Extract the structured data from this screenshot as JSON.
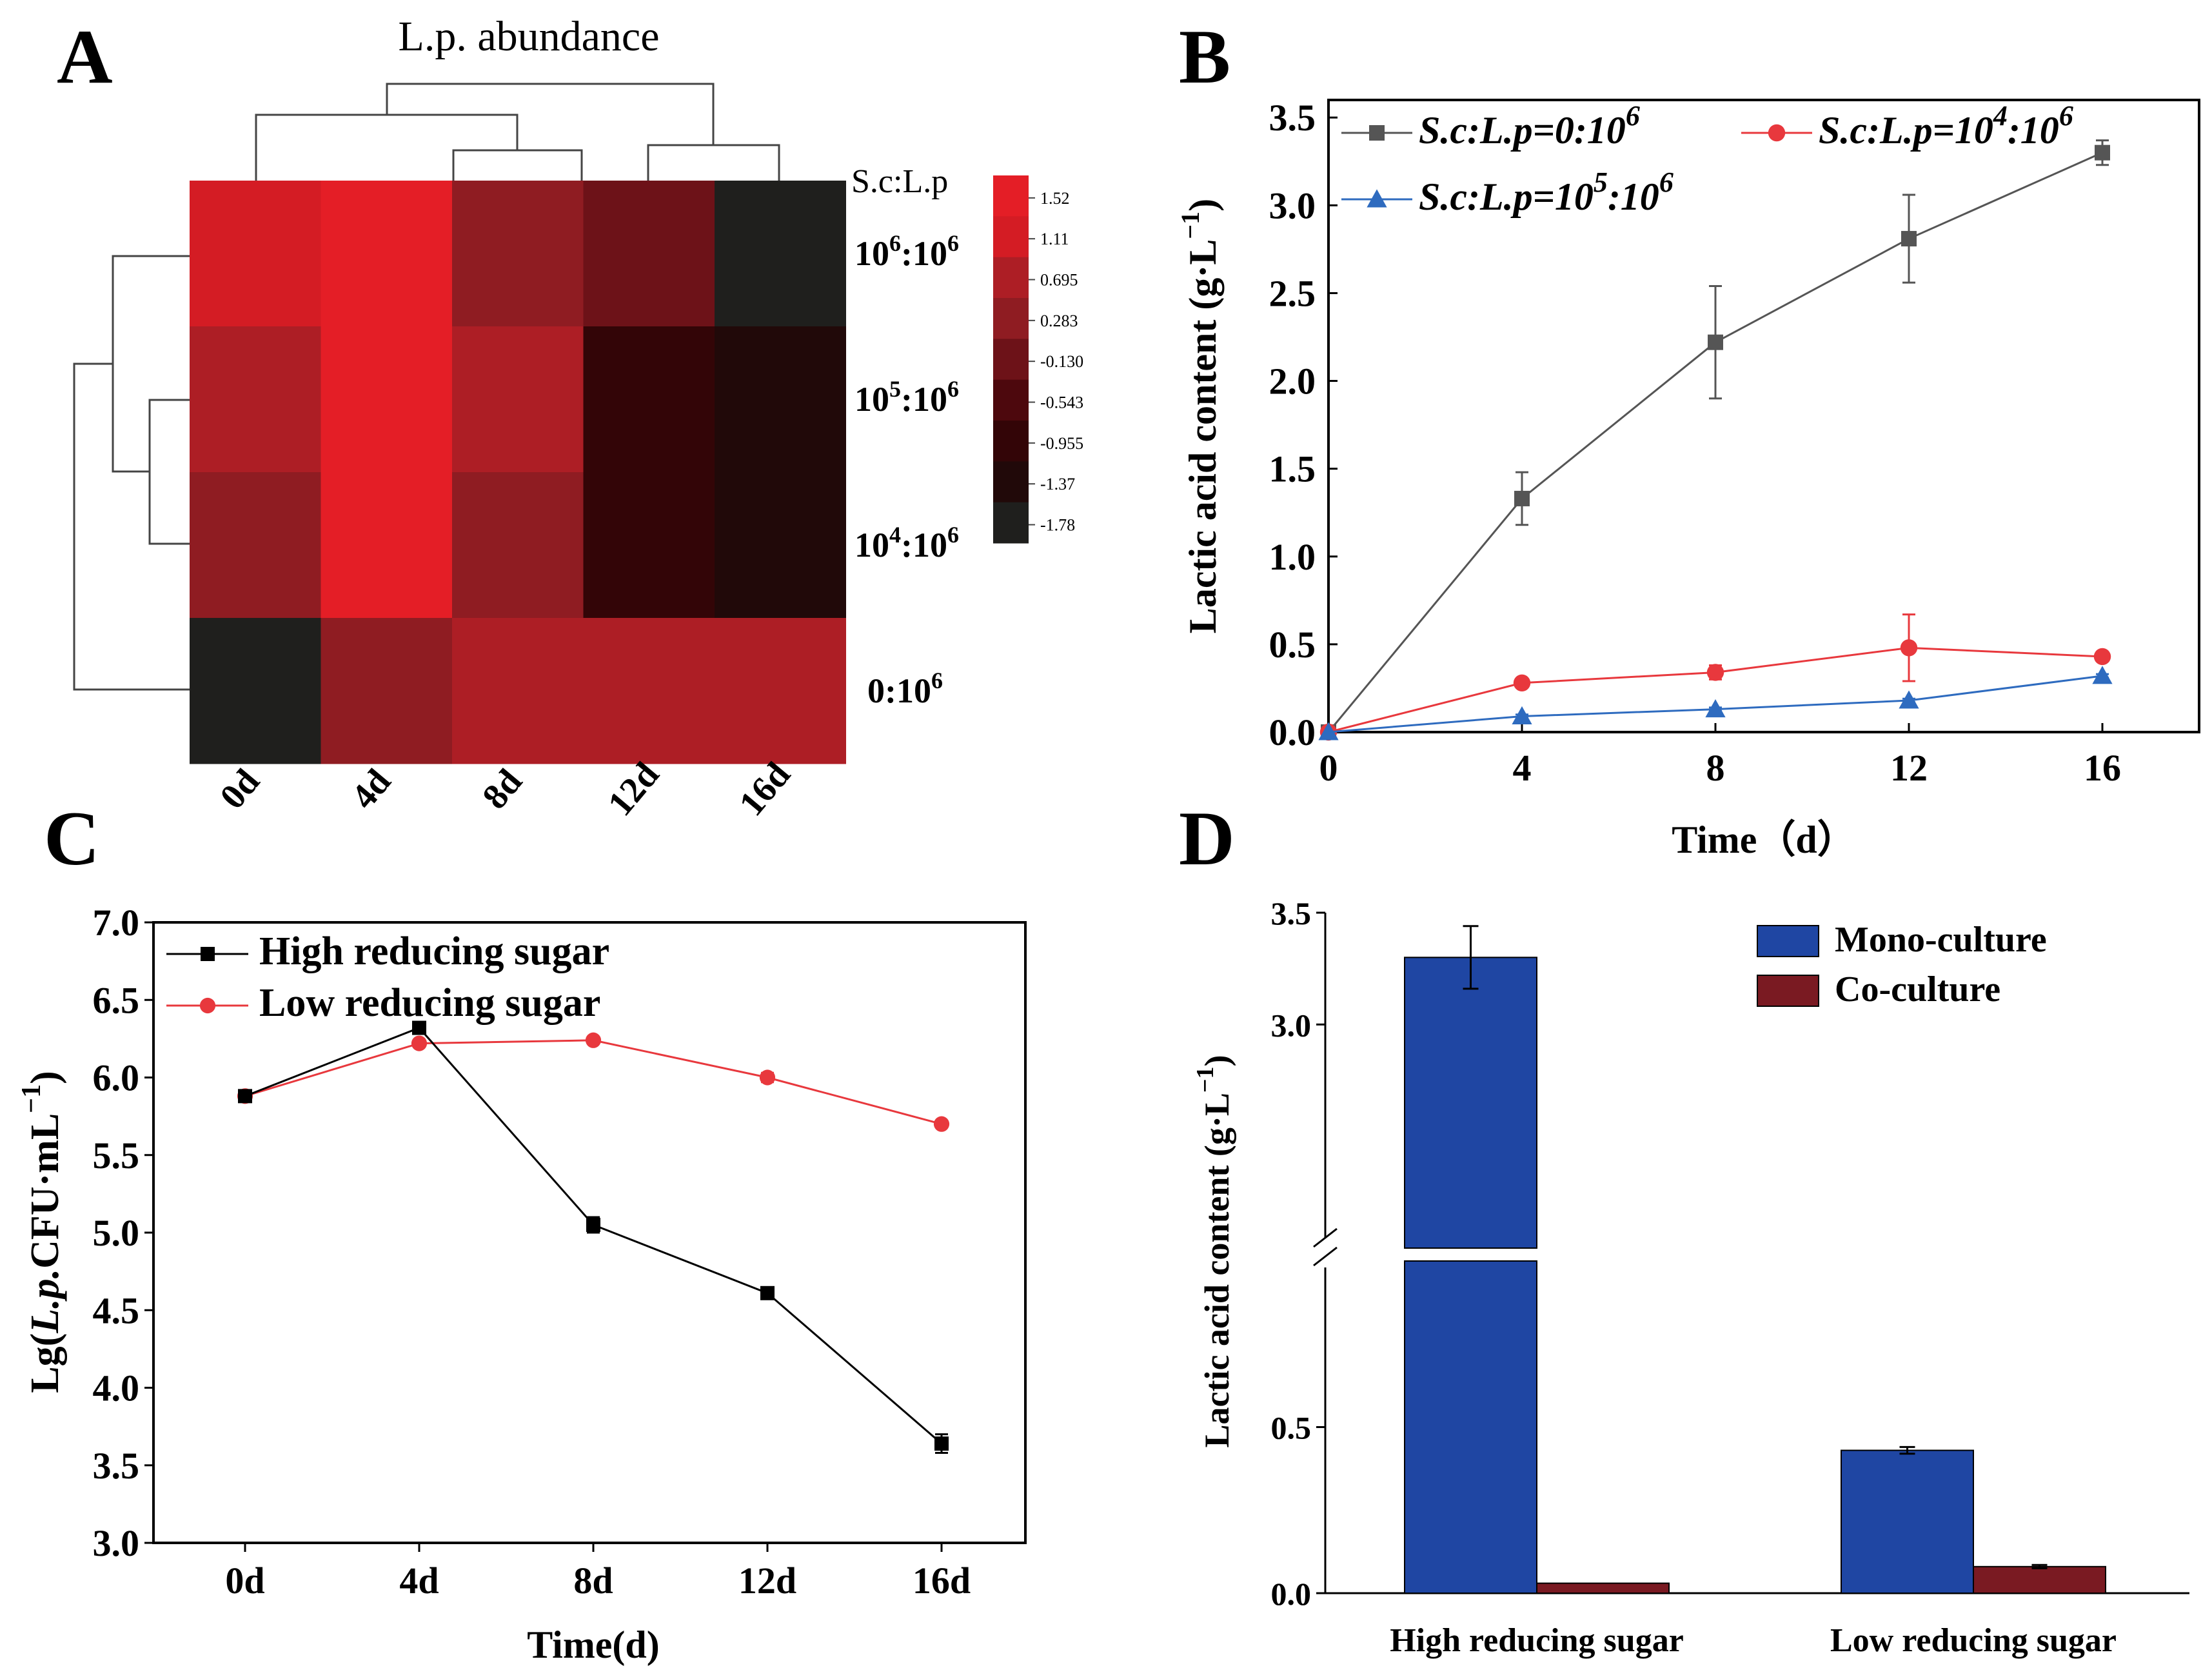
{
  "chart_data": [
    {
      "panel": "A",
      "type": "heatmap",
      "title": "L.p. abundance",
      "row_header": "S.c:L.p",
      "rows": [
        {
          "base": "10",
          "exp": "6",
          "mid": ":10",
          "exp2": "6"
        },
        {
          "base": "10",
          "exp": "5",
          "mid": ":10",
          "exp2": "6"
        },
        {
          "base": "10",
          "exp": "4",
          "mid": ":10",
          "exp2": "6"
        },
        {
          "base": "0",
          "exp": "",
          "mid": ":10",
          "exp2": "6"
        }
      ],
      "columns": [
        "0d",
        "4d",
        "8d",
        "12d",
        "16d"
      ],
      "values": [
        [
          1.05,
          1.62,
          0.3,
          -0.2,
          -1.95
        ],
        [
          0.6,
          1.62,
          0.85,
          -0.85,
          -1.4
        ],
        [
          0.3,
          1.62,
          0.45,
          -0.85,
          -1.4
        ],
        [
          -1.8,
          0.3,
          0.6,
          0.6,
          0.6
        ]
      ],
      "colorbar_ticks": [
        "1.52",
        "1.11",
        "0.695",
        "0.283",
        "-0.130",
        "-0.543",
        "-0.955",
        "-1.37",
        "-1.78"
      ],
      "colorbar_colors": [
        "#e41e26",
        "#d41c24",
        "#ad1e25",
        "#8f1c22",
        "#6d1218",
        "#4d080d",
        "#330507",
        "#210909",
        "#1f1f1d"
      ]
    },
    {
      "panel": "B",
      "type": "line",
      "xlabel": "Time（d）",
      "ylabel_prefix": "Lactic acid content (g·L",
      "ylabel_exp": "−1",
      "ylabel_suffix": ")",
      "x": [
        0,
        4,
        8,
        12,
        16
      ],
      "xlim": [
        0,
        18
      ],
      "ylim": [
        0,
        3.6
      ],
      "xticks": [
        "0",
        "4",
        "8",
        "12",
        "16"
      ],
      "yticks": [
        "0.0",
        "0.5",
        "1.0",
        "1.5",
        "2.0",
        "2.5",
        "3.0",
        "3.5"
      ],
      "series": [
        {
          "name": "S.c:L.p=0:10",
          "sup": "6",
          "color": "#555555",
          "marker": "square",
          "values": [
            0,
            1.33,
            2.22,
            2.81,
            3.3
          ],
          "errors": [
            0,
            0.15,
            0.32,
            0.25,
            0.07
          ]
        },
        {
          "name": "S.c:L.p=10",
          "sup": "4",
          "name2": ":10",
          "sup2": "6",
          "color": "#e8383d",
          "marker": "circle",
          "values": [
            0,
            0.28,
            0.34,
            0.48,
            0.43
          ],
          "errors": [
            0,
            0.02,
            0.04,
            0.19,
            0.02
          ]
        },
        {
          "name": "S.c:L.p=10",
          "sup": "5",
          "name2": ":10",
          "sup2": "6",
          "color": "#2e6bbf",
          "marker": "triangle",
          "values": [
            0,
            0.09,
            0.13,
            0.18,
            0.32
          ],
          "errors": [
            0,
            0.01,
            0.01,
            0.01,
            0.01
          ]
        }
      ]
    },
    {
      "panel": "C",
      "type": "line",
      "xlabel": "Time(d)",
      "ylabel_prefix": "Lg(",
      "ylabel_italic": "L.p.",
      "ylabel_mid": "CFU·mL",
      "ylabel_exp": "−1",
      "ylabel_suffix": ")",
      "categories": [
        "0d",
        "4d",
        "8d",
        "12d",
        "16d"
      ],
      "ylim": [
        3.0,
        7.0
      ],
      "yticks": [
        "3.0",
        "3.5",
        "4.0",
        "4.5",
        "5.0",
        "5.5",
        "6.0",
        "6.5",
        "7.0"
      ],
      "series": [
        {
          "name": "High reducing sugar",
          "color": "#000000",
          "marker": "square",
          "values": [
            5.88,
            6.32,
            5.05,
            4.61,
            3.64
          ],
          "errors": [
            0.02,
            0.02,
            0.05,
            0.02,
            0.06
          ]
        },
        {
          "name": "Low reducing sugar",
          "color": "#e8383d",
          "marker": "circle",
          "values": [
            5.88,
            6.22,
            6.24,
            6.0,
            5.7
          ],
          "errors": [
            0.02,
            0.02,
            0.02,
            0.03,
            0.02
          ]
        }
      ]
    },
    {
      "panel": "D",
      "type": "bar",
      "ylabel_prefix": "Lactic acid content (g·L",
      "ylabel_exp": "−1",
      "ylabel_suffix": ")",
      "categories": [
        "High reducing sugar",
        "Low reducing sugar"
      ],
      "broken_axis": {
        "lower": [
          0.0,
          1.0
        ],
        "upper": [
          2.0,
          3.5
        ]
      },
      "yticks": [
        "0.0",
        "0.5",
        "3.0",
        "3.5"
      ],
      "series": [
        {
          "name": "Mono-culture",
          "color": "#1f46a3",
          "values": [
            3.3,
            0.43
          ],
          "errors": [
            0.14,
            0.01
          ]
        },
        {
          "name": "Co-culture",
          "color": "#7a1a22",
          "values": [
            0.03,
            0.08
          ],
          "errors": [
            0,
            0.005
          ]
        }
      ]
    }
  ],
  "panel_labels": [
    "A",
    "B",
    "C",
    "D"
  ]
}
